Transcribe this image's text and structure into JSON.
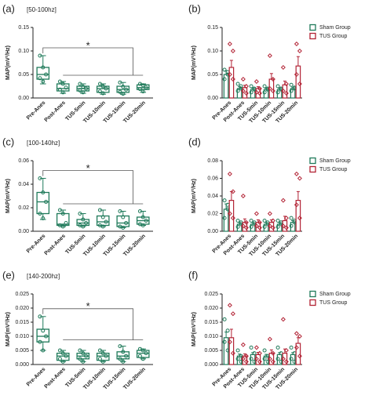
{
  "chart_data": [
    {
      "type": "box",
      "label": "(a)",
      "subtitle": "[50-100hz]",
      "ylabel": "MAP(mV²/Hz)",
      "annotation": "*",
      "categories": [
        "Pre-Anes",
        "Post-Anes",
        "TUS-5min",
        "TUS-10min",
        "TUS-15min",
        "TUS-20min"
      ],
      "color": "#1f7a5a",
      "ylim": [
        0,
        0.15
      ],
      "yticks": [
        {
          "value": 0,
          "label": "0.00"
        },
        0.05,
        {
          "value": 0.1,
          "label": "0.10"
        },
        0.15
      ],
      "boxes": [
        {
          "min": 0.03,
          "q1": 0.04,
          "median": 0.05,
          "q3": 0.065,
          "max": 0.09,
          "points": [
            0.09,
            0.065,
            0.05,
            0.042,
            0.035
          ]
        },
        {
          "min": 0.01,
          "q1": 0.015,
          "median": 0.02,
          "q3": 0.03,
          "max": 0.035,
          "points": [
            0.035,
            0.03,
            0.022,
            0.018,
            0.012
          ]
        },
        {
          "min": 0.01,
          "q1": 0.015,
          "median": 0.02,
          "q3": 0.025,
          "max": 0.03,
          "points": [
            0.03,
            0.024,
            0.02,
            0.016,
            0.012
          ]
        },
        {
          "min": 0.008,
          "q1": 0.012,
          "median": 0.02,
          "q3": 0.025,
          "max": 0.03,
          "points": [
            0.03,
            0.025,
            0.02,
            0.014,
            0.01
          ]
        },
        {
          "min": 0.008,
          "q1": 0.012,
          "median": 0.018,
          "q3": 0.025,
          "max": 0.033,
          "points": [
            0.033,
            0.024,
            0.018,
            0.013,
            0.009
          ]
        },
        {
          "min": 0.012,
          "q1": 0.018,
          "median": 0.022,
          "q3": 0.028,
          "max": 0.03,
          "points": [
            0.03,
            0.027,
            0.022,
            0.019,
            0.014
          ]
        }
      ]
    },
    {
      "type": "bar",
      "label": "(b)",
      "ylabel": "MAP(mV²/Hz)",
      "categories": [
        "Pre-Anes",
        "Post-Anes",
        "TUS-5min",
        "TUS-10min",
        "TUS-15min",
        "TUS-20min"
      ],
      "ylim": [
        0,
        0.15
      ],
      "yticks": [
        {
          "value": 0,
          "label": "0.00"
        },
        0.05,
        {
          "value": 0.1,
          "label": "0.10"
        },
        0.15
      ],
      "series": [
        {
          "name": "Sham Group",
          "color": "#1f7a5a",
          "values": [
            0.05,
            0.02,
            0.018,
            0.018,
            0.018,
            0.02
          ],
          "errors": [
            0.008,
            0.004,
            0.003,
            0.003,
            0.003,
            0.003
          ],
          "points": [
            [
              0.06,
              0.05,
              0.04,
              0.055
            ],
            [
              0.03,
              0.02,
              0.015,
              0.025
            ],
            [
              0.025,
              0.018,
              0.012,
              0.02
            ],
            [
              0.025,
              0.018,
              0.012,
              0.02
            ],
            [
              0.025,
              0.018,
              0.012,
              0.02
            ],
            [
              0.028,
              0.02,
              0.015,
              0.022
            ]
          ]
        },
        {
          "name": "TUS Group",
          "color": "#b22234",
          "values": [
            0.065,
            0.022,
            0.02,
            0.04,
            0.028,
            0.068
          ],
          "errors": [
            0.015,
            0.005,
            0.004,
            0.012,
            0.008,
            0.02
          ],
          "points": [
            [
              0.115,
              0.1,
              0.05,
              0.04
            ],
            [
              0.04,
              0.025,
              0.015,
              0.01
            ],
            [
              0.035,
              0.02,
              0.012,
              0.01
            ],
            [
              0.09,
              0.04,
              0.02,
              0.015
            ],
            [
              0.065,
              0.03,
              0.015,
              0.01
            ],
            [
              0.115,
              0.1,
              0.05,
              0.03
            ]
          ]
        }
      ]
    },
    {
      "type": "box",
      "label": "(c)",
      "subtitle": "[100-140hz]",
      "ylabel": "MAP(mV²/Hz)",
      "annotation": "*",
      "categories": [
        "Pre-Anes",
        "Post-Anes",
        "TUS-5min",
        "TUS-10min",
        "TUS-15min",
        "TUS-20min"
      ],
      "color": "#1f7a5a",
      "ylim": [
        0,
        0.06
      ],
      "yticks": [
        {
          "value": 0,
          "label": "0.00"
        },
        0.02,
        0.04,
        0.06
      ],
      "boxes": [
        {
          "min": 0.01,
          "q1": 0.015,
          "median": 0.025,
          "q3": 0.033,
          "max": 0.045,
          "points": [
            0.045,
            0.033,
            0.025,
            0.015,
            0.011
          ]
        },
        {
          "min": 0.004,
          "q1": 0.005,
          "median": 0.006,
          "q3": 0.015,
          "max": 0.018,
          "points": [
            0.018,
            0.015,
            0.007,
            0.005,
            0.004
          ]
        },
        {
          "min": 0.004,
          "q1": 0.005,
          "median": 0.007,
          "q3": 0.01,
          "max": 0.015,
          "points": [
            0.015,
            0.01,
            0.007,
            0.005,
            0.004
          ]
        },
        {
          "min": 0.004,
          "q1": 0.005,
          "median": 0.008,
          "q3": 0.013,
          "max": 0.018,
          "points": [
            0.018,
            0.012,
            0.008,
            0.005,
            0.004
          ]
        },
        {
          "min": 0.003,
          "q1": 0.004,
          "median": 0.007,
          "q3": 0.013,
          "max": 0.017,
          "points": [
            0.017,
            0.012,
            0.007,
            0.004,
            0.003
          ]
        },
        {
          "min": 0.005,
          "q1": 0.006,
          "median": 0.009,
          "q3": 0.012,
          "max": 0.017,
          "points": [
            0.017,
            0.012,
            0.009,
            0.006,
            0.005
          ]
        }
      ]
    },
    {
      "type": "bar",
      "label": "(d)",
      "ylabel": "MAP(mV²/Hz)",
      "categories": [
        "Pre-Anes",
        "Post-Anes",
        "TUS-5min",
        "TUS-10min",
        "TUS-15min",
        "TUS-20min"
      ],
      "ylim": [
        0,
        0.08
      ],
      "yticks": [
        {
          "value": 0,
          "label": "0.00"
        },
        0.02,
        0.04,
        0.06,
        0.08
      ],
      "series": [
        {
          "name": "Sham Group",
          "color": "#1f7a5a",
          "values": [
            0.025,
            0.008,
            0.008,
            0.008,
            0.008,
            0.01
          ],
          "errors": [
            0.006,
            0.002,
            0.002,
            0.002,
            0.002,
            0.002
          ],
          "points": [
            [
              0.035,
              0.025,
              0.015,
              0.03
            ],
            [
              0.012,
              0.008,
              0.005,
              0.01
            ],
            [
              0.012,
              0.008,
              0.005,
              0.01
            ],
            [
              0.012,
              0.008,
              0.005,
              0.01
            ],
            [
              0.012,
              0.008,
              0.005,
              0.01
            ],
            [
              0.015,
              0.01,
              0.006,
              0.012
            ]
          ]
        },
        {
          "name": "TUS Group",
          "color": "#b22234",
          "values": [
            0.035,
            0.01,
            0.01,
            0.01,
            0.012,
            0.035
          ],
          "errors": [
            0.01,
            0.004,
            0.003,
            0.003,
            0.005,
            0.01
          ],
          "points": [
            [
              0.065,
              0.045,
              0.02,
              0.015
            ],
            [
              0.04,
              0.01,
              0.006,
              0.004
            ],
            [
              0.02,
              0.01,
              0.006,
              0.004
            ],
            [
              0.02,
              0.012,
              0.006,
              0.004
            ],
            [
              0.035,
              0.015,
              0.006,
              0.004
            ],
            [
              0.065,
              0.06,
              0.03,
              0.015
            ]
          ]
        }
      ]
    },
    {
      "type": "box",
      "label": "(e)",
      "subtitle": "[140-200hz]",
      "ylabel": "MAP(mV²/Hz)",
      "annotation": "*",
      "categories": [
        "Pre-Anes",
        "Post-Anes",
        "TUS-5min",
        "TUS-10min",
        "TUS-15min",
        "TUS-20min"
      ],
      "color": "#1f7a5a",
      "ylim": [
        0,
        0.025
      ],
      "yticks": [
        {
          "value": 0,
          "label": "0.000"
        },
        0.005,
        {
          "value": 0.01,
          "label": "0.010"
        },
        0.015,
        {
          "value": 0.02,
          "label": "0.020"
        },
        0.025
      ],
      "boxes": [
        {
          "min": 0.005,
          "q1": 0.008,
          "median": 0.01,
          "q3": 0.0125,
          "max": 0.017,
          "points": [
            0.017,
            0.012,
            0.01,
            0.008,
            0.005
          ]
        },
        {
          "min": 0.001,
          "q1": 0.0015,
          "median": 0.003,
          "q3": 0.004,
          "max": 0.005,
          "points": [
            0.005,
            0.004,
            0.003,
            0.002,
            0.001
          ]
        },
        {
          "min": 0.001,
          "q1": 0.002,
          "median": 0.003,
          "q3": 0.004,
          "max": 0.005,
          "points": [
            0.005,
            0.004,
            0.003,
            0.002,
            0.001
          ]
        },
        {
          "min": 0.001,
          "q1": 0.0015,
          "median": 0.003,
          "q3": 0.004,
          "max": 0.005,
          "points": [
            0.005,
            0.004,
            0.003,
            0.002,
            0.001
          ]
        },
        {
          "min": 0.001,
          "q1": 0.002,
          "median": 0.003,
          "q3": 0.0045,
          "max": 0.0065,
          "points": [
            0.0065,
            0.0045,
            0.003,
            0.002,
            0.001
          ]
        },
        {
          "min": 0.002,
          "q1": 0.0025,
          "median": 0.004,
          "q3": 0.005,
          "max": 0.0055,
          "points": [
            0.0055,
            0.005,
            0.004,
            0.003,
            0.002
          ]
        }
      ]
    },
    {
      "type": "bar",
      "label": "(f)",
      "ylabel": "MAP(mV²/Hz)",
      "categories": [
        "Pre-Anes",
        "Post-Anes",
        "TUS-5min",
        "TUS-10min",
        "TUS-15min",
        "TUS-20min"
      ],
      "ylim": [
        0,
        0.025
      ],
      "yticks": [
        {
          "value": 0,
          "label": "0.000"
        },
        0.005,
        {
          "value": 0.01,
          "label": "0.010"
        },
        0.015,
        {
          "value": 0.02,
          "label": "0.020"
        },
        0.025
      ],
      "series": [
        {
          "name": "Sham Group",
          "color": "#1f7a5a",
          "values": [
            0.0095,
            0.003,
            0.0035,
            0.003,
            0.0035,
            0.0035
          ],
          "errors": [
            0.002,
            0.0007,
            0.0007,
            0.0006,
            0.0007,
            0.0007
          ],
          "points": [
            [
              0.016,
              0.012,
              0.008,
              0.005
            ],
            [
              0.005,
              0.003,
              0.002,
              0.001
            ],
            [
              0.006,
              0.004,
              0.002,
              0.001
            ],
            [
              0.005,
              0.003,
              0.002,
              0.001
            ],
            [
              0.006,
              0.004,
              0.002,
              0.001
            ],
            [
              0.006,
              0.004,
              0.002,
              0.001
            ]
          ]
        },
        {
          "name": "TUS Group",
          "color": "#b22234",
          "values": [
            0.0095,
            0.003,
            0.0035,
            0.004,
            0.004,
            0.0075
          ],
          "errors": [
            0.003,
            0.0008,
            0.0008,
            0.0012,
            0.0015,
            0.002
          ],
          "points": [
            [
              0.021,
              0.018,
              0.008,
              0.004
            ],
            [
              0.007,
              0.003,
              0.002,
              0.001
            ],
            [
              0.006,
              0.004,
              0.002,
              0.001
            ],
            [
              0.009,
              0.004,
              0.002,
              0.001
            ],
            [
              0.016,
              0.005,
              0.002,
              0.001
            ],
            [
              0.011,
              0.01,
              0.006,
              0.003
            ]
          ]
        }
      ]
    }
  ]
}
